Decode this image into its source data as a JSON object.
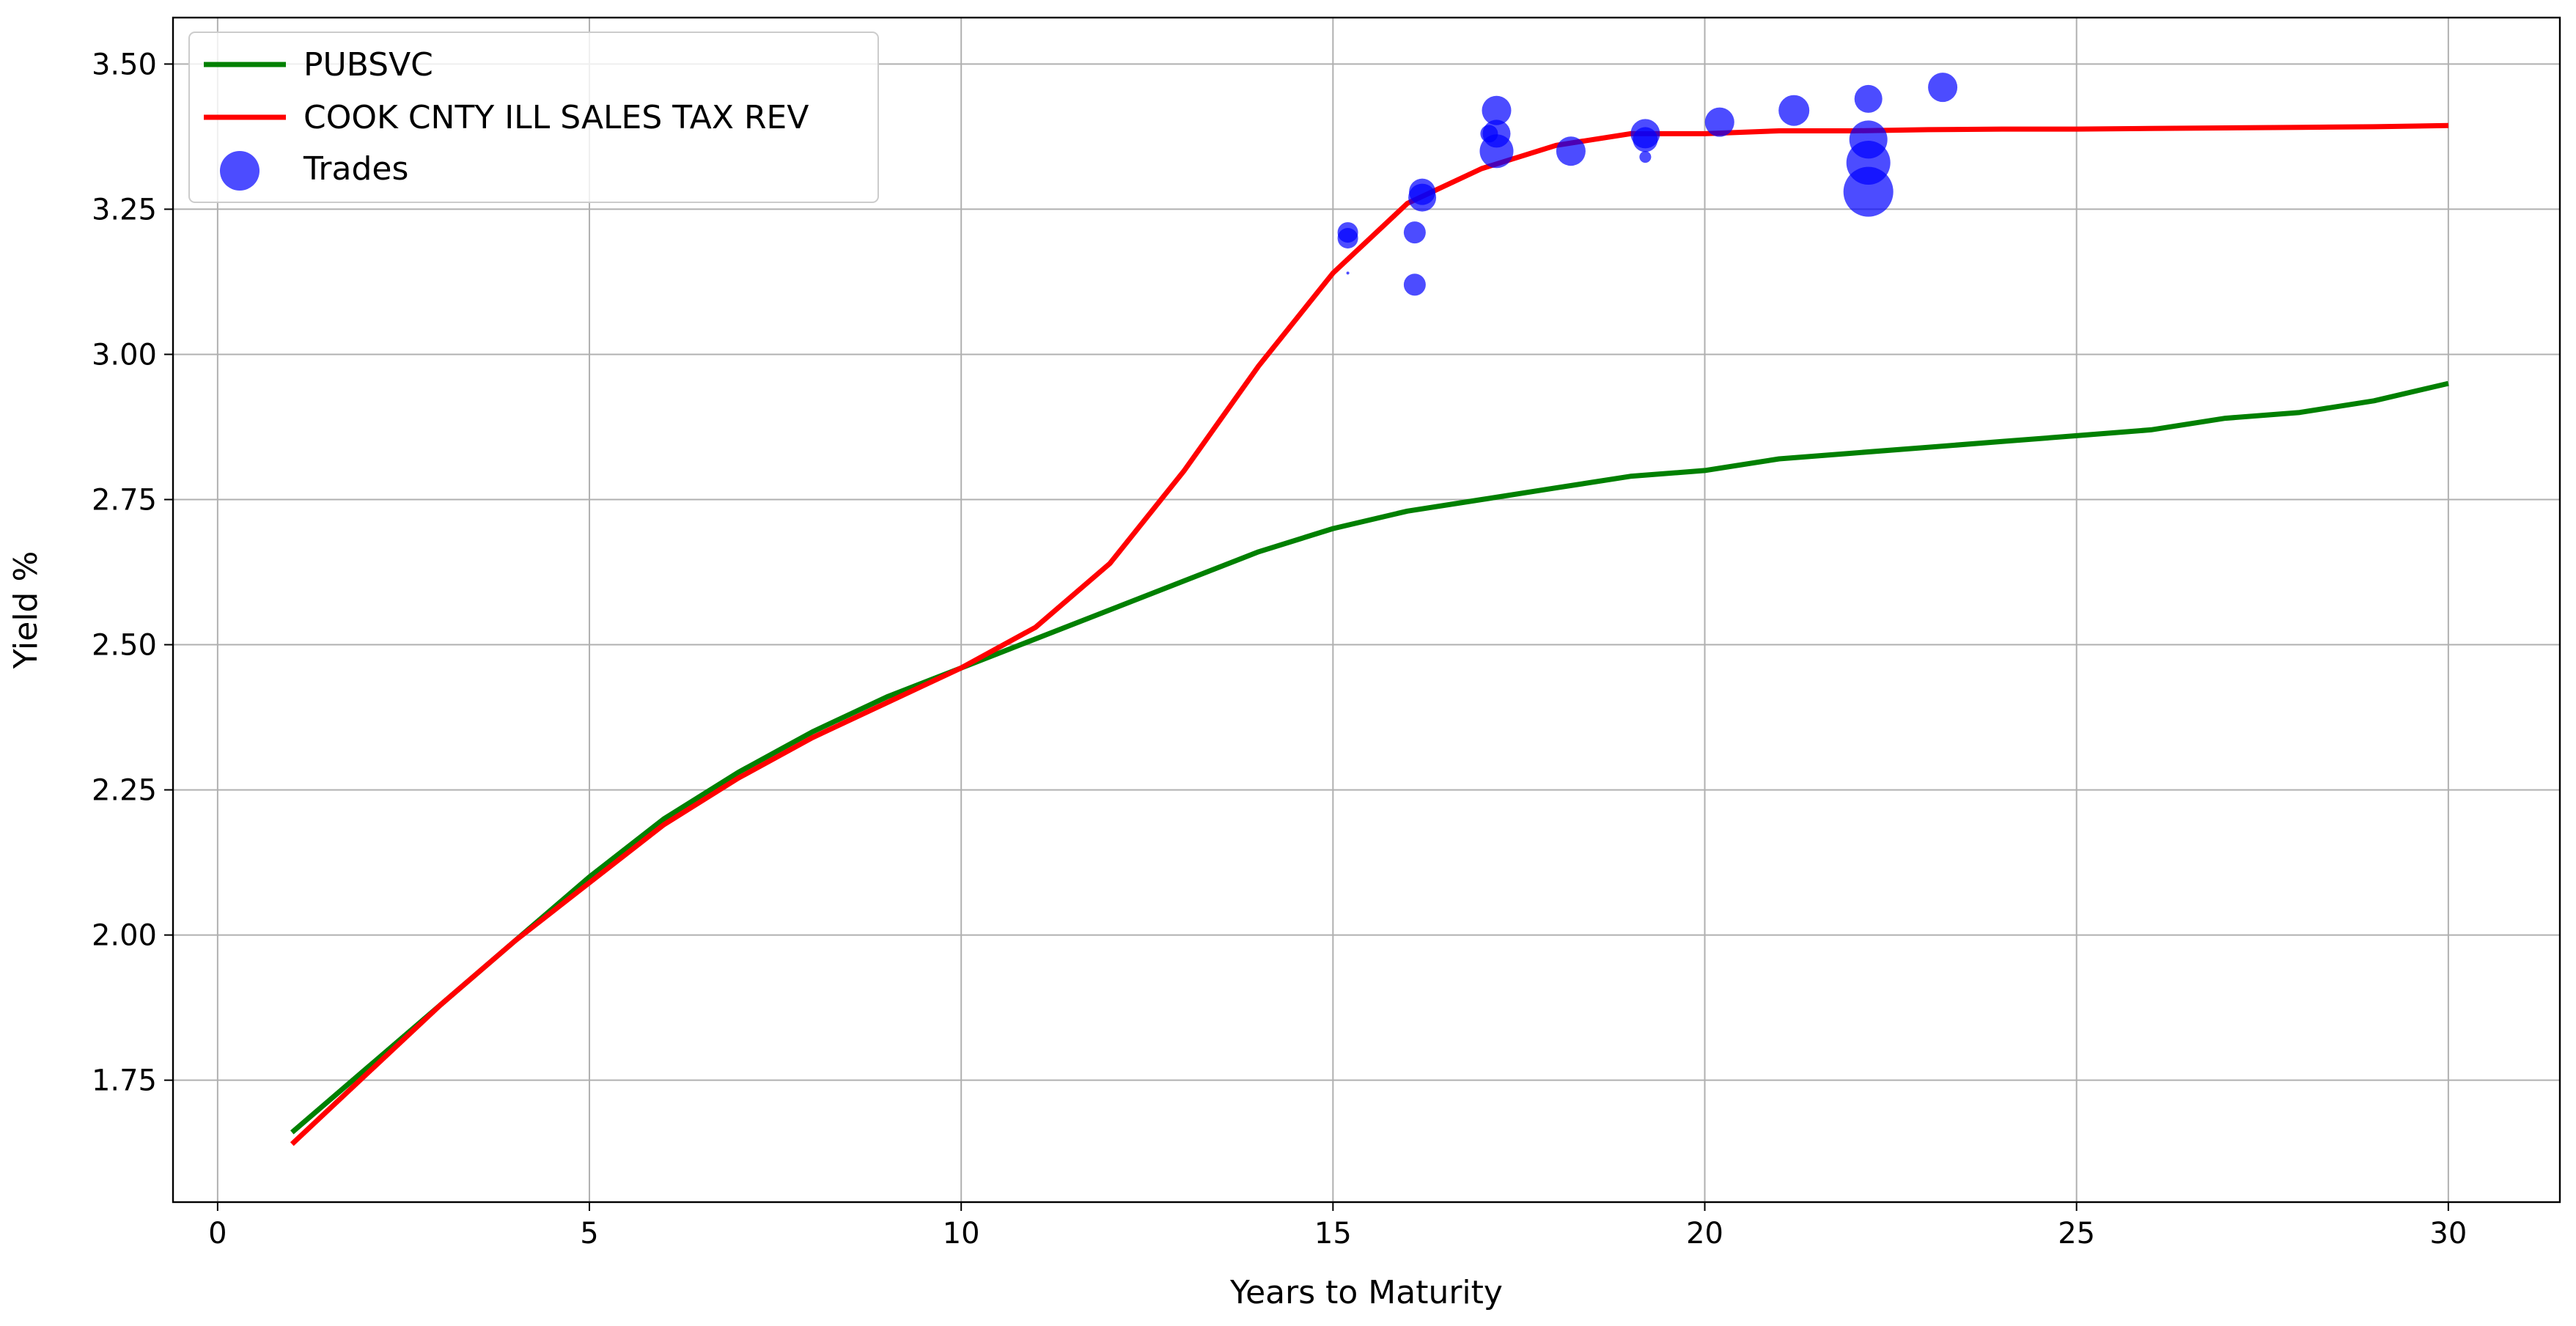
{
  "chart_data": {
    "type": "line",
    "xlabel": "Years to Maturity",
    "ylabel": "Yield %",
    "xlim": [
      -0.6,
      31.5
    ],
    "ylim": [
      1.54,
      3.58
    ],
    "xticks": [
      0,
      5,
      10,
      15,
      20,
      25,
      30
    ],
    "yticks": [
      1.75,
      2.0,
      2.25,
      2.5,
      2.75,
      3.0,
      3.25,
      3.5
    ],
    "xtick_labels": [
      "0",
      "5",
      "10",
      "15",
      "20",
      "25",
      "30"
    ],
    "ytick_labels": [
      "1.75",
      "2.00",
      "2.25",
      "2.50",
      "2.75",
      "3.00",
      "3.25",
      "3.50"
    ],
    "grid": true,
    "legend_position": "top-left",
    "series": [
      {
        "name": "PUBSVC",
        "type": "line",
        "color": "#008000",
        "x": [
          1,
          2,
          3,
          4,
          5,
          6,
          7,
          8,
          9,
          10,
          11,
          12,
          13,
          14,
          15,
          16,
          17,
          18,
          19,
          20,
          21,
          22,
          23,
          24,
          25,
          26,
          27,
          28,
          29,
          30
        ],
        "y": [
          1.66,
          1.77,
          1.88,
          1.99,
          2.1,
          2.2,
          2.28,
          2.35,
          2.41,
          2.46,
          2.51,
          2.56,
          2.61,
          2.66,
          2.7,
          2.73,
          2.75,
          2.77,
          2.79,
          2.8,
          2.82,
          2.83,
          2.84,
          2.85,
          2.86,
          2.87,
          2.89,
          2.9,
          2.92,
          2.95
        ]
      },
      {
        "name": "COOK CNTY ILL SALES TAX REV",
        "type": "line",
        "color": "#ff0000",
        "x": [
          1,
          2,
          3,
          4,
          5,
          6,
          7,
          8,
          9,
          10,
          11,
          12,
          13,
          14,
          15,
          16,
          17,
          18,
          19,
          20,
          21,
          22,
          23,
          24,
          25,
          26,
          27,
          28,
          29,
          30
        ],
        "y": [
          1.64,
          1.76,
          1.88,
          1.99,
          2.09,
          2.19,
          2.27,
          2.34,
          2.4,
          2.46,
          2.53,
          2.64,
          2.8,
          2.98,
          3.14,
          3.26,
          3.32,
          3.36,
          3.38,
          3.38,
          3.385,
          3.385,
          3.387,
          3.388,
          3.388,
          3.389,
          3.39,
          3.391,
          3.392,
          3.394
        ]
      },
      {
        "name": "Trades",
        "type": "scatter",
        "color": "#0000ff",
        "opacity": 0.7,
        "x": [
          15.2,
          15.2,
          15.2,
          16.1,
          16.1,
          16.2,
          16.2,
          17.1,
          17.2,
          17.2,
          17.2,
          18.2,
          19.2,
          19.2,
          19.2,
          20.2,
          21.2,
          22.2,
          22.2,
          22.2,
          22.2,
          23.2
        ],
        "y": [
          3.14,
          3.2,
          3.21,
          3.12,
          3.21,
          3.27,
          3.28,
          3.38,
          3.35,
          3.38,
          3.42,
          3.35,
          3.34,
          3.37,
          3.38,
          3.4,
          3.42,
          3.28,
          3.33,
          3.37,
          3.44,
          3.46
        ],
        "sizes": [
          2,
          14,
          14,
          15,
          15,
          19,
          18,
          12,
          23,
          19,
          20,
          20,
          8,
          17,
          20,
          20,
          21,
          34,
          30,
          26,
          19,
          20
        ]
      }
    ]
  }
}
